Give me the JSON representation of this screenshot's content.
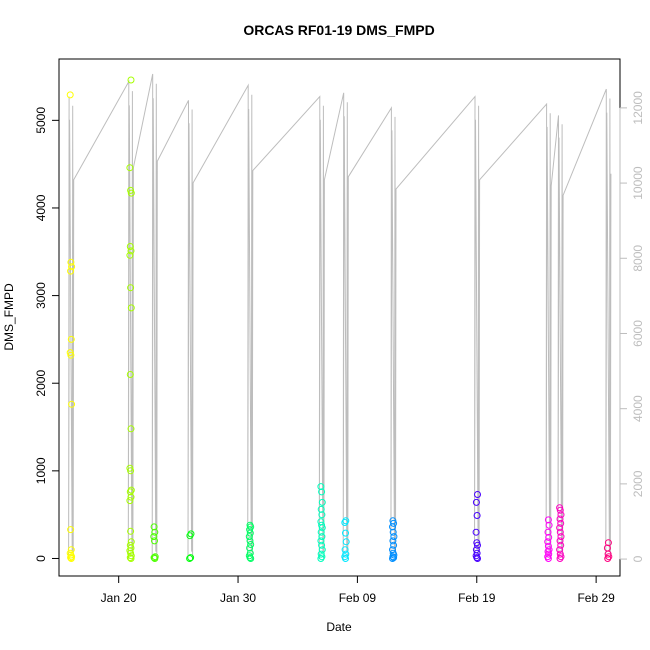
{
  "chart_data": {
    "type": "scatter",
    "title": "ORCAS RF01-19 DMS_FMPD",
    "xlabel": "Date",
    "ylabel": "DMS_FMPD",
    "xlim": [
      "2016-01-15",
      "2016-03-02"
    ],
    "ylim": [
      -200,
      5700
    ],
    "y2lim": [
      -450,
      13300
    ],
    "x_ticks": [
      {
        "date": "2016-01-20",
        "label": "Jan 20"
      },
      {
        "date": "2016-01-30",
        "label": "Jan 30"
      },
      {
        "date": "2016-02-09",
        "label": "Feb 09"
      },
      {
        "date": "2016-02-19",
        "label": "Feb 19"
      },
      {
        "date": "2016-02-29",
        "label": "Feb 29"
      }
    ],
    "y_ticks": [
      0,
      1000,
      2000,
      3000,
      4000,
      5000
    ],
    "y2_ticks": [
      0,
      2000,
      4000,
      6000,
      8000,
      10000,
      12000
    ],
    "line_color": "#bdbdbd",
    "flights": [
      {
        "date": "2016-01-16",
        "color": "#ffff00",
        "alt_top": 12300,
        "values": [
          5290,
          3380,
          3330,
          3280,
          2500,
          2350,
          2320,
          1760,
          330,
          100,
          60,
          40,
          20,
          10,
          0
        ]
      },
      {
        "date": "2016-01-21",
        "color": "#a6ff00",
        "alt_top": 12700,
        "values": [
          5460,
          4460,
          4200,
          4170,
          3560,
          3510,
          3460,
          3090,
          2860,
          2100,
          1480,
          1030,
          1000,
          780,
          760,
          700,
          660,
          310,
          190,
          150,
          120,
          90,
          60,
          30,
          10,
          0
        ]
      },
      {
        "date": "2016-01-23",
        "color": "#4dff00",
        "alt_top": 12900,
        "values": [
          360,
          300,
          250,
          200,
          20,
          10,
          0
        ]
      },
      {
        "date": "2016-01-26",
        "color": "#00ff0b",
        "alt_top": 12200,
        "values": [
          280,
          260,
          10,
          0
        ]
      },
      {
        "date": "2016-01-31",
        "color": "#00ff64",
        "alt_top": 12600,
        "values": [
          380,
          360,
          330,
          290,
          250,
          200,
          160,
          120,
          60,
          30,
          10,
          0
        ]
      },
      {
        "date": "2016-02-06",
        "color": "#00ffbd",
        "alt_top": 12300,
        "values": [
          820,
          760,
          640,
          560,
          500,
          420,
          380,
          350,
          300,
          250,
          200,
          150,
          100,
          50,
          20,
          0
        ]
      },
      {
        "date": "2016-02-08",
        "color": "#00e8ff",
        "alt_top": 12400,
        "values": [
          430,
          410,
          290,
          190,
          100,
          50,
          20,
          0
        ]
      },
      {
        "date": "2016-02-12",
        "color": "#008fff",
        "alt_top": 12000,
        "values": [
          430,
          400,
          360,
          300,
          250,
          200,
          150,
          100,
          60,
          40,
          20,
          10,
          0
        ]
      },
      {
        "date": "2016-02-19",
        "color": "#4800ff",
        "alt_top": 12300,
        "values": [
          730,
          640,
          490,
          300,
          180,
          150,
          100,
          60,
          30,
          10,
          0
        ]
      },
      {
        "date": "2016-02-25",
        "color": "#ff00f8",
        "alt_top": 12100,
        "values": [
          440,
          380,
          300,
          240,
          190,
          140,
          100,
          80,
          50,
          20,
          0
        ]
      },
      {
        "date": "2016-02-26",
        "color": "#ff00c2",
        "alt_top": 11800,
        "values": [
          580,
          550,
          500,
          450,
          400,
          350,
          300,
          250,
          200,
          150,
          100,
          50,
          20,
          0
        ]
      },
      {
        "date": "2016-03-01",
        "color": "#ff0080",
        "alt_top": 12500,
        "values": [
          180,
          120,
          50,
          20,
          0
        ]
      }
    ]
  }
}
